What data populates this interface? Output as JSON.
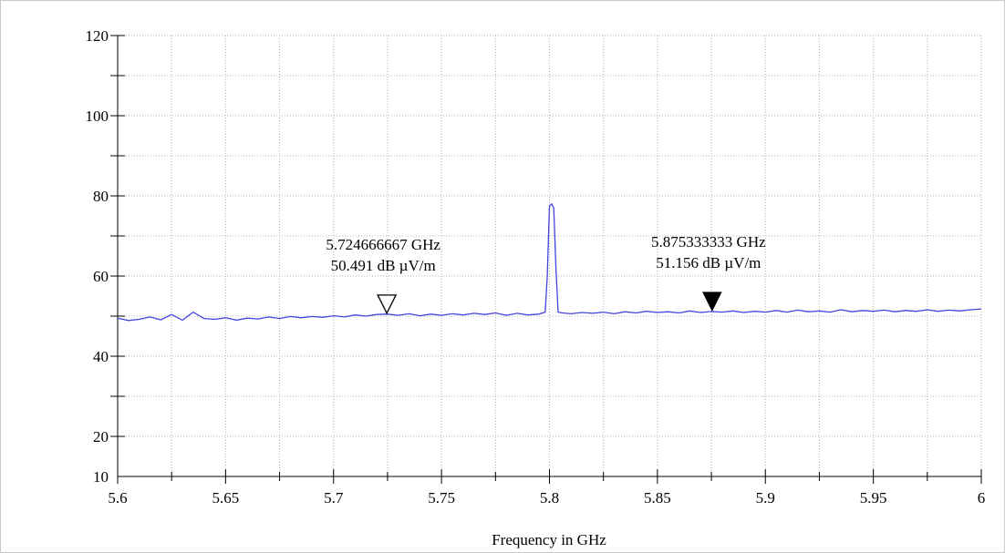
{
  "chart_data": {
    "type": "line",
    "title": "",
    "xlabel": "Frequency in GHz",
    "ylabel": "",
    "xlim": [
      5.6,
      6.0
    ],
    "ylim": [
      10,
      120
    ],
    "x_ticks": [
      5.6,
      5.65,
      5.7,
      5.75,
      5.8,
      5.85,
      5.9,
      5.95,
      6.0
    ],
    "x_tick_labels": [
      "5.6",
      "5.65",
      "5.7",
      "5.75",
      "5.8",
      "5.85",
      "5.9",
      "5.95",
      "6"
    ],
    "y_ticks": [
      10,
      20,
      40,
      60,
      80,
      100,
      120
    ],
    "y_tick_labels": [
      "10",
      "20",
      "40",
      "60",
      "80",
      "100",
      "120"
    ],
    "grid": true,
    "line_color": "#4444dd",
    "series": [
      {
        "x": [
          5.6,
          5.605,
          5.61,
          5.615,
          5.62,
          5.625,
          5.63,
          5.635,
          5.64,
          5.645,
          5.65,
          5.655,
          5.66,
          5.665,
          5.67,
          5.675,
          5.68,
          5.685,
          5.69,
          5.695,
          5.7,
          5.705,
          5.71,
          5.715,
          5.72,
          5.725,
          5.73,
          5.735,
          5.74,
          5.745,
          5.75,
          5.755,
          5.76,
          5.765,
          5.77,
          5.775,
          5.78,
          5.785,
          5.79,
          5.795,
          5.798,
          5.799,
          5.8,
          5.801,
          5.802,
          5.803,
          5.804,
          5.806,
          5.81,
          5.815,
          5.82,
          5.825,
          5.83,
          5.835,
          5.84,
          5.845,
          5.85,
          5.855,
          5.86,
          5.865,
          5.87,
          5.875,
          5.88,
          5.885,
          5.89,
          5.895,
          5.9,
          5.905,
          5.91,
          5.915,
          5.92,
          5.925,
          5.93,
          5.935,
          5.94,
          5.945,
          5.95,
          5.955,
          5.96,
          5.965,
          5.97,
          5.975,
          5.98,
          5.985,
          5.99,
          5.995,
          6.0
        ],
        "y": [
          49.5,
          48.9,
          49.2,
          49.8,
          49.1,
          50.4,
          49.0,
          51.0,
          49.4,
          49.2,
          49.6,
          49.0,
          49.5,
          49.3,
          49.8,
          49.4,
          49.9,
          49.6,
          49.9,
          49.7,
          50.1,
          49.8,
          50.3,
          50.0,
          50.4,
          50.5,
          50.2,
          50.6,
          50.1,
          50.5,
          50.2,
          50.6,
          50.3,
          50.7,
          50.4,
          50.8,
          50.2,
          50.7,
          50.3,
          50.5,
          51.0,
          60.0,
          77.5,
          78.0,
          77.0,
          62.0,
          51.0,
          50.8,
          50.6,
          50.9,
          50.7,
          51.0,
          50.6,
          51.1,
          50.8,
          51.2,
          50.9,
          51.1,
          50.8,
          51.3,
          50.9,
          51.156,
          51.0,
          51.3,
          50.9,
          51.2,
          51.0,
          51.4,
          51.0,
          51.5,
          51.1,
          51.3,
          51.0,
          51.6,
          51.1,
          51.4,
          51.2,
          51.5,
          51.1,
          51.4,
          51.2,
          51.6,
          51.2,
          51.5,
          51.3,
          51.6,
          51.8
        ]
      }
    ],
    "markers": [
      {
        "x": 5.724666667,
        "y": 50.491,
        "style": "open",
        "freq_label": "5.724666667 GHz",
        "level_label": "50.491 dB µV/m"
      },
      {
        "x": 5.875333333,
        "y": 51.156,
        "style": "filled",
        "freq_label": "5.875333333 GHz",
        "level_label": "51.156 dB µV/m"
      }
    ]
  }
}
